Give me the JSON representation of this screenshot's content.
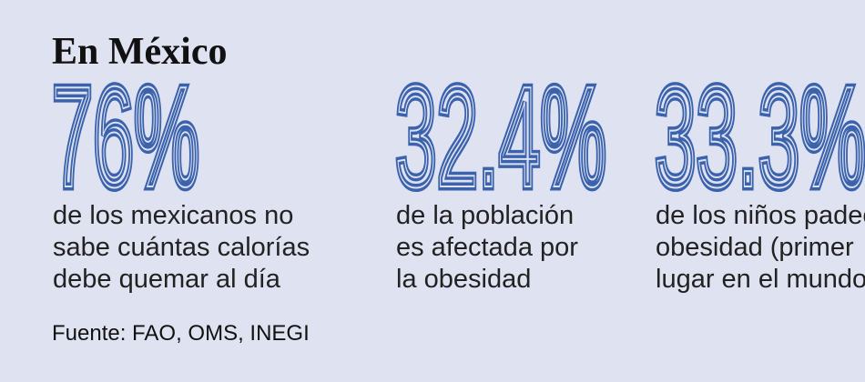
{
  "title": "En México",
  "stats": [
    {
      "value": "76%",
      "lines": [
        "de los mexicanos no",
        "sabe cuántas calorías",
        "debe quemar al día"
      ]
    },
    {
      "value": "32.4%",
      "lines": [
        "de la población",
        "es afectada por",
        "la obesidad"
      ]
    },
    {
      "value": "33.3%",
      "lines": [
        "de los niños padece",
        "obesidad (primer",
        "lugar en el mundo)"
      ]
    }
  ],
  "source": "Fuente: FAO, OMS, INEGI"
}
